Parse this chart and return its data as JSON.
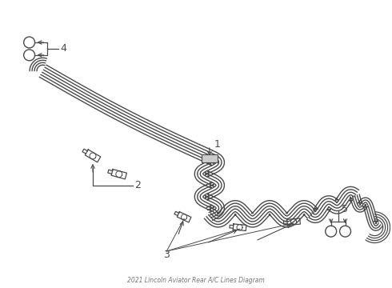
{
  "title": "2021 Lincoln Aviator Rear A/C Lines Diagram",
  "bg_color": "#ffffff",
  "line_color": "#4a4a4a",
  "fig_width": 4.9,
  "fig_height": 3.6,
  "dpi": 100,
  "n_tubes": 6,
  "tube_spread": 0.006
}
